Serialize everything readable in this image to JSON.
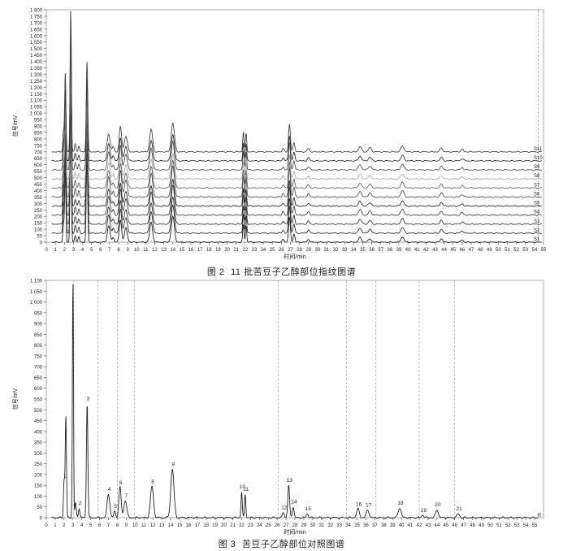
{
  "figure_top": {
    "caption_label": "图 2",
    "caption_text": "11 批苦豆子乙醇部位指纹图谱"
  },
  "figure_bottom": {
    "caption_label": "图 3",
    "caption_text": "苦豆子乙醇部位对照图谱"
  },
  "chart_data": [
    {
      "type": "line",
      "title": "",
      "xlabel": "时间/min",
      "ylabel": "信号/mV",
      "xlim": [
        0,
        55
      ],
      "ylim": [
        0,
        1800
      ],
      "x_ticks": [
        0,
        1,
        2,
        3,
        4,
        5,
        6,
        7,
        8,
        9,
        10,
        11,
        12,
        13,
        14,
        15,
        16,
        17,
        18,
        19,
        20,
        21,
        22,
        23,
        24,
        25,
        26,
        27,
        28,
        29,
        30,
        31,
        32,
        33,
        34,
        35,
        36,
        37,
        38,
        39,
        40,
        41,
        42,
        43,
        44,
        45,
        46,
        47,
        48,
        49,
        50,
        51,
        52,
        53,
        54,
        55
      ],
      "y_ticks": [
        0,
        50,
        100,
        150,
        200,
        250,
        300,
        350,
        400,
        450,
        500,
        550,
        600,
        650,
        700,
        750,
        800,
        850,
        900,
        950,
        1000,
        1050,
        1100,
        1150,
        1200,
        1250,
        1300,
        1350,
        1400,
        1450,
        1500,
        1550,
        1600,
        1650,
        1700,
        1750,
        1800
      ],
      "reference_line_x": 54.4,
      "series_offset_step": 70,
      "series": [
        {
          "name": "S1",
          "offset": 0,
          "color": "#222222"
        },
        {
          "name": "S2",
          "offset": 70,
          "color": "#333333"
        },
        {
          "name": "S3",
          "offset": 140,
          "color": "#3a3a3a"
        },
        {
          "name": "S4",
          "offset": 210,
          "color": "#444444"
        },
        {
          "name": "S5",
          "offset": 280,
          "color": "#2a2a2a"
        },
        {
          "name": "S6",
          "offset": 350,
          "color": "#555555"
        },
        {
          "name": "S7",
          "offset": 420,
          "color": "#666666"
        },
        {
          "name": "S8",
          "offset": 490,
          "color": "#aaaaaa"
        },
        {
          "name": "S9",
          "offset": 560,
          "color": "#555555"
        },
        {
          "name": "S10",
          "offset": 630,
          "color": "#333333"
        },
        {
          "name": "S11",
          "offset": 700,
          "color": "#444444"
        }
      ],
      "peaks": [
        {
          "rt": 1.9,
          "height": 160,
          "width": 0.07
        },
        {
          "rt": 2.1,
          "height": 600,
          "width": 0.07
        },
        {
          "rt": 2.7,
          "height": 1080,
          "width": 0.07
        },
        {
          "rt": 3.2,
          "height": 60,
          "width": 0.08
        },
        {
          "rt": 3.6,
          "height": 45,
          "width": 0.08
        },
        {
          "rt": 4.5,
          "height": 690,
          "width": 0.08
        },
        {
          "rt": 6.9,
          "height": 140,
          "width": 0.15
        },
        {
          "rt": 7.4,
          "height": 40,
          "width": 0.1
        },
        {
          "rt": 8.2,
          "height": 190,
          "width": 0.13
        },
        {
          "rt": 8.8,
          "height": 120,
          "width": 0.16
        },
        {
          "rt": 11.6,
          "height": 170,
          "width": 0.16
        },
        {
          "rt": 14.0,
          "height": 220,
          "width": 0.17
        },
        {
          "rt": 21.8,
          "height": 150,
          "width": 0.07
        },
        {
          "rt": 22.1,
          "height": 140,
          "width": 0.07
        },
        {
          "rt": 26.2,
          "height": 25,
          "width": 0.1
        },
        {
          "rt": 26.9,
          "height": 210,
          "width": 0.1
        },
        {
          "rt": 27.4,
          "height": 70,
          "width": 0.1
        },
        {
          "rt": 29.0,
          "height": 25,
          "width": 0.12
        },
        {
          "rt": 34.7,
          "height": 40,
          "width": 0.16
        },
        {
          "rt": 35.8,
          "height": 30,
          "width": 0.16
        },
        {
          "rt": 39.4,
          "height": 45,
          "width": 0.17
        },
        {
          "rt": 43.7,
          "height": 30,
          "width": 0.14
        },
        {
          "rt": 46.0,
          "height": 18,
          "width": 0.14
        }
      ]
    },
    {
      "type": "line",
      "title": "",
      "xlabel": "时间/min",
      "ylabel": "信号/mV",
      "xlim": [
        0,
        56
      ],
      "ylim": [
        0,
        1100
      ],
      "x_ticks": [
        0,
        1,
        2,
        3,
        4,
        5,
        6,
        7,
        8,
        9,
        10,
        11,
        12,
        13,
        14,
        15,
        16,
        17,
        18,
        19,
        20,
        21,
        22,
        23,
        24,
        25,
        26,
        27,
        28,
        29,
        30,
        31,
        32,
        33,
        34,
        35,
        36,
        37,
        38,
        39,
        40,
        41,
        42,
        43,
        44,
        45,
        46,
        47,
        48,
        49,
        50,
        51,
        52,
        53,
        54,
        55
      ],
      "y_ticks": [
        0,
        50,
        100,
        150,
        200,
        250,
        300,
        350,
        400,
        450,
        500,
        550,
        600,
        650,
        700,
        750,
        800,
        850,
        900,
        950,
        1000,
        1050,
        1100
      ],
      "series": [
        {
          "name": "R",
          "color": "#222222"
        }
      ],
      "reference_lines_x": [
        3.1,
        5.8,
        8.0,
        9.9,
        26.1,
        33.8,
        37.1,
        42.0,
        46.0
      ],
      "peaks": [
        {
          "label": "1",
          "rt": 2.0,
          "height": 170,
          "width": 0.07
        },
        {
          "label": "",
          "rt": 2.2,
          "height": 470,
          "width": 0.07
        },
        {
          "label": "",
          "rt": 3.0,
          "height": 1100,
          "width": 0.06
        },
        {
          "label": "",
          "rt": 3.3,
          "height": 70,
          "width": 0.08
        },
        {
          "label": "2",
          "rt": 3.7,
          "height": 45,
          "width": 0.08
        },
        {
          "label": "3",
          "rt": 4.6,
          "height": 530,
          "width": 0.08
        },
        {
          "label": "4",
          "rt": 7.0,
          "height": 110,
          "width": 0.15
        },
        {
          "label": "5",
          "rt": 7.7,
          "height": 30,
          "width": 0.1
        },
        {
          "label": "6",
          "rt": 8.3,
          "height": 140,
          "width": 0.13
        },
        {
          "label": "7",
          "rt": 8.9,
          "height": 80,
          "width": 0.16
        },
        {
          "label": "8",
          "rt": 11.9,
          "height": 145,
          "width": 0.17
        },
        {
          "label": "9",
          "rt": 14.2,
          "height": 225,
          "width": 0.18
        },
        {
          "label": "10",
          "rt": 22.0,
          "height": 120,
          "width": 0.07
        },
        {
          "label": "11",
          "rt": 22.4,
          "height": 110,
          "width": 0.07
        },
        {
          "label": "12",
          "rt": 26.7,
          "height": 25,
          "width": 0.1
        },
        {
          "label": "13",
          "rt": 27.3,
          "height": 150,
          "width": 0.1
        },
        {
          "label": "14",
          "rt": 27.8,
          "height": 50,
          "width": 0.1
        },
        {
          "label": "15",
          "rt": 29.4,
          "height": 18,
          "width": 0.12
        },
        {
          "label": "16",
          "rt": 35.1,
          "height": 40,
          "width": 0.16
        },
        {
          "label": "17",
          "rt": 36.2,
          "height": 35,
          "width": 0.16
        },
        {
          "label": "18",
          "rt": 39.8,
          "height": 45,
          "width": 0.17
        },
        {
          "label": "19",
          "rt": 42.4,
          "height": 12,
          "width": 0.14
        },
        {
          "label": "20",
          "rt": 44.0,
          "height": 38,
          "width": 0.15
        },
        {
          "label": "21",
          "rt": 46.4,
          "height": 18,
          "width": 0.14
        }
      ]
    }
  ]
}
